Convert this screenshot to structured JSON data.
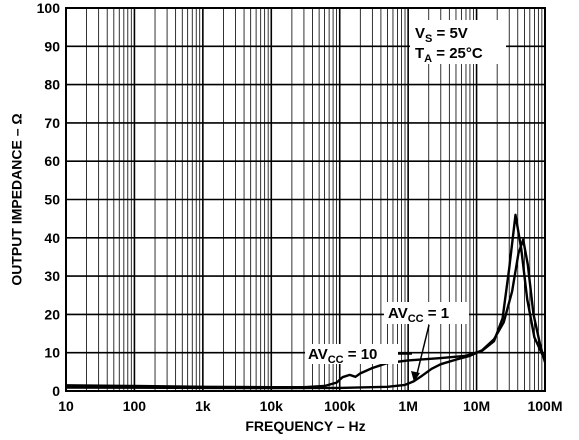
{
  "chart_data": {
    "type": "line",
    "xlabel": "FREQUENCY – Hz",
    "ylabel": "OUTPUT IMPEDANCE – Ω",
    "xscale": "log",
    "xlim": [
      10,
      100000000
    ],
    "ylim": [
      0,
      100
    ],
    "grid": true,
    "x_tick_labels": [
      "10",
      "100",
      "1k",
      "10k",
      "100k",
      "1M",
      "10M",
      "100M"
    ],
    "y_tick_labels": [
      "0",
      "10",
      "20",
      "30",
      "40",
      "50",
      "60",
      "70",
      "80",
      "90",
      "100"
    ],
    "conditions": {
      "vs": {
        "main": "V",
        "sub": "S",
        "rest": " = 5V"
      },
      "ta": {
        "main": "T",
        "sub": "A",
        "rest": " = 25°C"
      }
    },
    "series": [
      {
        "name": "AVCC = 10",
        "label": {
          "main": "AV",
          "sub": "CC",
          "rest": " = 10"
        },
        "points": [
          [
            10,
            1.5
          ],
          [
            100,
            1.3
          ],
          [
            1000,
            1.1
          ],
          [
            10000,
            1.0
          ],
          [
            30000,
            1.0
          ],
          [
            60000,
            1.3
          ],
          [
            90000,
            2.2
          ],
          [
            110000,
            3.6
          ],
          [
            140000,
            4.2
          ],
          [
            170000,
            3.7
          ],
          [
            200000,
            4.6
          ],
          [
            300000,
            6.0
          ],
          [
            500000,
            7.3
          ],
          [
            1000000,
            8.0
          ],
          [
            3000000,
            8.6
          ],
          [
            7000000,
            9.2
          ],
          [
            12000000,
            10.5
          ],
          [
            18000000,
            13.0
          ],
          [
            24000000,
            19.0
          ],
          [
            30000000,
            32.0
          ],
          [
            37000000,
            46.0
          ],
          [
            45000000,
            37.0
          ],
          [
            55000000,
            24.0
          ],
          [
            70000000,
            14.0
          ],
          [
            100000000,
            8.0
          ]
        ]
      },
      {
        "name": "AVCC = 1",
        "label": {
          "main": "AV",
          "sub": "CC",
          "rest": " = 1"
        },
        "points": [
          [
            10,
            0.9
          ],
          [
            100,
            0.85
          ],
          [
            1000,
            0.8
          ],
          [
            10000,
            0.75
          ],
          [
            100000,
            0.8
          ],
          [
            500000,
            1.1
          ],
          [
            900000,
            1.6
          ],
          [
            1200000,
            2.5
          ],
          [
            1600000,
            4.0
          ],
          [
            2200000,
            5.8
          ],
          [
            3000000,
            7.0
          ],
          [
            5000000,
            8.2
          ],
          [
            8000000,
            9.2
          ],
          [
            12000000,
            10.6
          ],
          [
            18000000,
            13.5
          ],
          [
            25000000,
            18.0
          ],
          [
            33000000,
            26.0
          ],
          [
            41000000,
            36.0
          ],
          [
            48000000,
            39.5
          ],
          [
            56000000,
            33.0
          ],
          [
            68000000,
            20.0
          ],
          [
            85000000,
            12.0
          ],
          [
            100000000,
            7.5
          ]
        ]
      }
    ]
  }
}
